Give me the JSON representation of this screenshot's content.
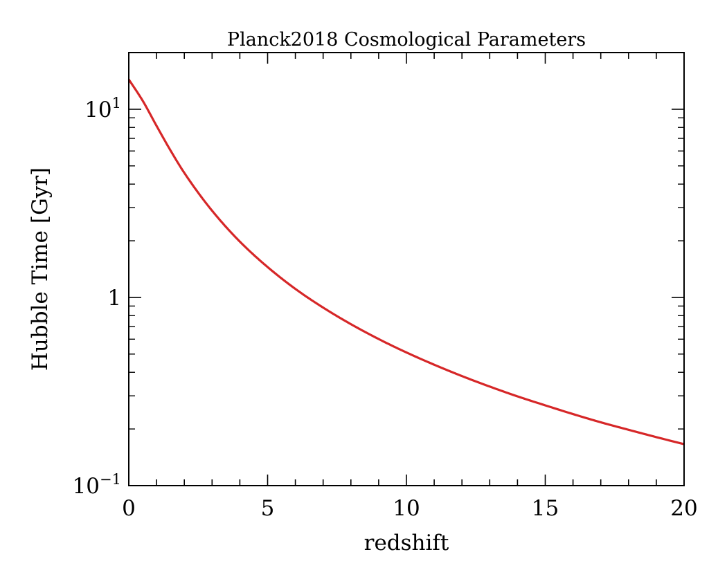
{
  "chart_data": {
    "type": "line",
    "title": "Planck2018 Cosmological Parameters",
    "xlabel": "redshift",
    "ylabel": "Hubble Time [Gyr]",
    "xlim": [
      0,
      20
    ],
    "ylim": [
      0.1,
      20
    ],
    "yscale": "log",
    "grid": false,
    "x_ticks": [
      0,
      5,
      10,
      15,
      20
    ],
    "x_tick_labels": [
      "0",
      "5",
      "10",
      "15",
      "20"
    ],
    "y_ticks": [
      {
        "value": 0.1,
        "base": "10",
        "exp": "−1"
      },
      {
        "value": 1,
        "base": "1",
        "exp": ""
      },
      {
        "value": 10,
        "base": "10",
        "exp": "1"
      }
    ],
    "series": [
      {
        "color": "#d62728",
        "x": [
          0,
          0.5,
          1,
          1.5,
          2,
          3,
          4,
          5,
          6,
          7,
          8,
          9,
          10,
          11,
          12,
          13,
          14,
          15,
          16,
          17,
          18,
          19,
          20
        ],
        "y": [
          14.4,
          11.1,
          8.16,
          6.05,
          4.59,
          2.89,
          1.98,
          1.45,
          1.11,
          0.883,
          0.721,
          0.601,
          0.51,
          0.439,
          0.382,
          0.336,
          0.298,
          0.267,
          0.24,
          0.217,
          0.198,
          0.181,
          0.166
        ]
      }
    ]
  }
}
